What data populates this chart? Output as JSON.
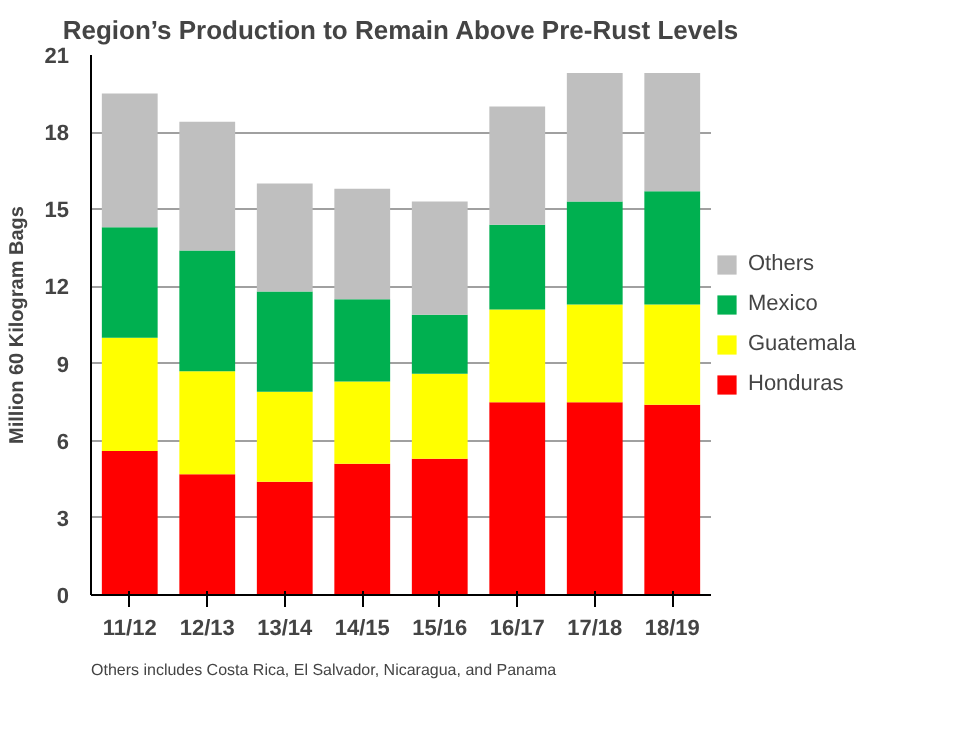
{
  "chart_data": {
    "type": "bar",
    "stacked": true,
    "title": "Region’s Production to Remain Above Pre-Rust Levels",
    "ylabel": "Million 60 Kilogram Bags",
    "categories": [
      "11/12",
      "12/13",
      "13/14",
      "14/15",
      "15/16",
      "16/17",
      "17/18",
      "18/19"
    ],
    "series": [
      {
        "name": "Honduras",
        "color": "#ff0000",
        "values": [
          5.6,
          4.7,
          4.4,
          5.1,
          5.3,
          7.5,
          7.5,
          7.4
        ]
      },
      {
        "name": "Guatemala",
        "color": "#ffff00",
        "values": [
          4.4,
          4.0,
          3.5,
          3.2,
          3.3,
          3.6,
          3.8,
          3.9
        ]
      },
      {
        "name": "Mexico",
        "color": "#00b050",
        "values": [
          4.3,
          4.7,
          3.9,
          3.2,
          2.3,
          3.3,
          4.0,
          4.4
        ]
      },
      {
        "name": "Others",
        "color": "#bfbfbf",
        "values": [
          5.2,
          5.0,
          4.2,
          4.3,
          4.4,
          4.6,
          5.0,
          4.6
        ]
      }
    ],
    "ylim": [
      0,
      21
    ],
    "yticks": [
      0,
      3,
      6,
      9,
      12,
      15,
      18,
      21
    ],
    "grid": "y",
    "legend": "right",
    "annotations": [
      "Others includes Costa Rica, El Salvador, Nicaragua, and Panama"
    ]
  }
}
